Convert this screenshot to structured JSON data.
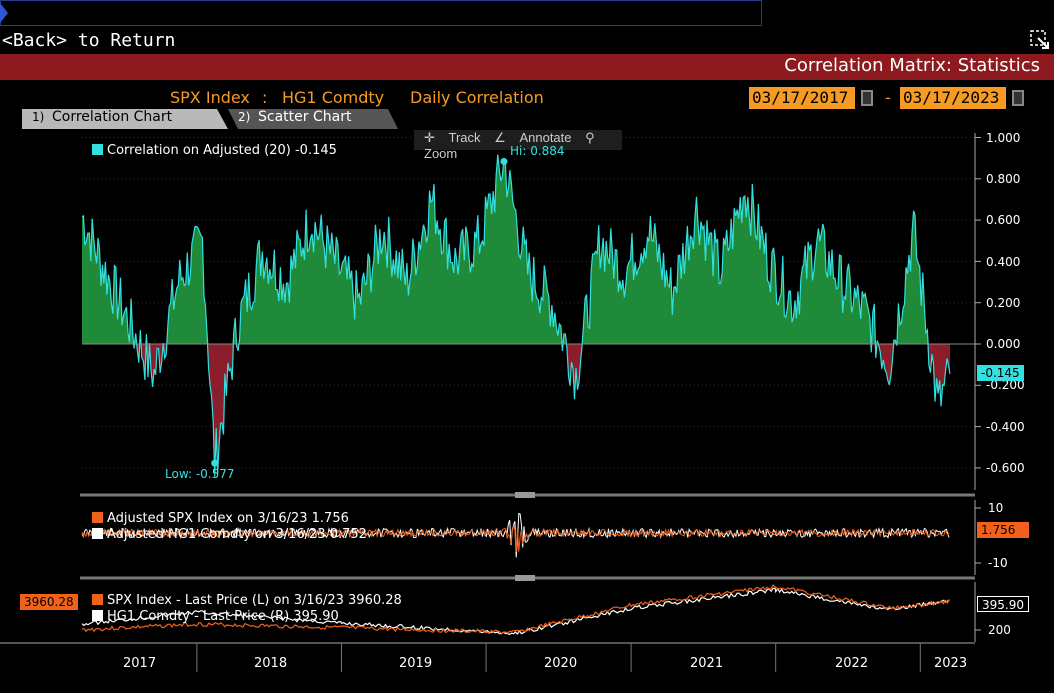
{
  "header": {
    "back_label": "<Back> to Return",
    "title": "Correlation Matrix: Statistics"
  },
  "selection": {
    "security1": "SPX Index",
    "separator": ":",
    "security2": "HG1 Comdty",
    "mode": "Daily Correlation",
    "start_date": "03/17/2017",
    "date_separator": "-",
    "end_date": "03/17/2023"
  },
  "tabs": [
    {
      "num": "1)",
      "label": "Correlation Chart"
    },
    {
      "num": "2)",
      "label": "Scatter Chart"
    }
  ],
  "toolbar": {
    "track": "Track",
    "annotate": "Annotate",
    "zoom": "Zoom"
  },
  "colors": {
    "accent": "#f59a23",
    "header_red": "#8c1a1f",
    "corr_line": "#33e0e0",
    "corr_fill_pos": "#1f8b3a",
    "corr_fill_neg": "#8b1e2a",
    "spx": "#f0621c",
    "hg1": "#ffffff"
  },
  "chart_data": [
    {
      "type": "area",
      "legend": "Correlation on Adjusted (20) -0.145",
      "hi_label": "Hi: 0.884",
      "low_label": "Low: -0.577",
      "last_tag": "-0.145",
      "y_ticks": [
        "1.000",
        "0.800",
        "0.600",
        "0.400",
        "0.200",
        "0.000",
        "-0.200",
        "-0.400",
        "-0.600"
      ],
      "ylim": [
        -0.7,
        1.0
      ],
      "series": [
        {
          "name": "Correlation on Adjusted (20)",
          "x": [
            "2017-03",
            "2017-05",
            "2017-07",
            "2017-09",
            "2017-11",
            "2018-01",
            "2018-02",
            "2018-04",
            "2018-06",
            "2018-08",
            "2018-10",
            "2018-12",
            "2019-02",
            "2019-04",
            "2019-06",
            "2019-08",
            "2019-10",
            "2019-12",
            "2020-02",
            "2020-04",
            "2020-06",
            "2020-08",
            "2020-10",
            "2020-12",
            "2021-02",
            "2021-04",
            "2021-06",
            "2021-08",
            "2021-10",
            "2021-12",
            "2022-02",
            "2022-04",
            "2022-06",
            "2022-08",
            "2022-10",
            "2022-12",
            "2023-02",
            "2023-03"
          ],
          "values": [
            0.62,
            0.35,
            0.1,
            -0.15,
            0.3,
            0.5,
            -0.577,
            0.1,
            0.45,
            0.3,
            0.6,
            0.4,
            0.2,
            0.55,
            0.3,
            0.7,
            0.4,
            0.5,
            0.884,
            0.35,
            0.2,
            -0.15,
            0.5,
            0.35,
            0.55,
            0.25,
            0.65,
            0.35,
            0.75,
            0.4,
            0.2,
            0.5,
            0.3,
            0.15,
            -0.1,
            0.55,
            -0.3,
            -0.145
          ]
        }
      ]
    },
    {
      "type": "line",
      "legend": [
        "Adjusted SPX Index on 3/16/23 1.756",
        "Adjusted HG1 Comdty on 3/16/23 0.752"
      ],
      "last_tag": "1.756",
      "y_ticks": [
        "10",
        "-10"
      ]
    },
    {
      "type": "line",
      "legend": [
        "SPX Index - Last Price (L) on 3/16/23 3960.28",
        "HG1 Comdty - Last Price (R) 395.90"
      ],
      "left_tag": "3960.28",
      "right_tag": "395.90",
      "y_ticks_right": [
        "200"
      ],
      "x_ticks": [
        "2017",
        "2018",
        "2019",
        "2020",
        "2021",
        "2022",
        "2023"
      ],
      "series": [
        {
          "name": "SPX Index",
          "x": [
            "2017",
            "2018",
            "2019",
            "2020-03",
            "2021",
            "2022",
            "2022-10",
            "2023-03"
          ],
          "values": [
            2380,
            2700,
            2500,
            2240,
            3750,
            4770,
            3580,
            3960.28
          ]
        },
        {
          "name": "HG1 Comdty",
          "x": [
            "2017",
            "2018",
            "2019",
            "2020-03",
            "2021",
            "2022",
            "2022-10",
            "2023-03"
          ],
          "values": [
            265,
            330,
            270,
            215,
            350,
            450,
            340,
            395.9
          ]
        }
      ]
    }
  ]
}
